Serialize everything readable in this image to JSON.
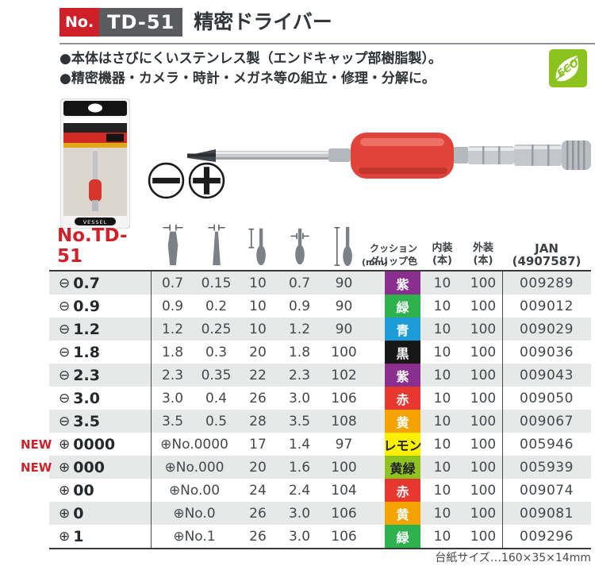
{
  "header": {
    "no_label": "No.",
    "model": "TD-51",
    "title": "精密ドライバー"
  },
  "features": [
    "●本体はさびにくいステンレス製（エンドキャップ部樹脂製）。",
    "●精密機器・カメラ・時計・メガネ等の組立・修理・分解に。"
  ],
  "eco_label": "ECO",
  "package_brand": "VESSEL",
  "symbols": {
    "minus": "⊖",
    "plus": "⊕"
  },
  "table": {
    "row_header_label": "No.TD-51",
    "unit_label": "(mm)",
    "new_label": "NEW",
    "columns": {
      "grip_line1": "クッション",
      "grip_line2": "グリップ色",
      "inner_line1": "内装",
      "inner_line2": "(本)",
      "outer_line1": "外装",
      "outer_line2": "(本)",
      "jan_line1": "JAN",
      "jan_line2": "(4907587)"
    },
    "rows": [
      {
        "new": false,
        "type": "minus",
        "size": "0.7",
        "values": [
          "0.7",
          "0.15",
          "10",
          "0.7",
          "90"
        ],
        "grip": "紫",
        "grip_hex": "#8a2e90",
        "grip_text_hex": "#ffffff",
        "inner": "10",
        "outer": "100",
        "jan": "009289"
      },
      {
        "new": false,
        "type": "minus",
        "size": "0.9",
        "values": [
          "0.9",
          "0.2",
          "10",
          "0.9",
          "90"
        ],
        "grip": "緑",
        "grip_hex": "#2eb24e",
        "grip_text_hex": "#ffffff",
        "inner": "10",
        "outer": "100",
        "jan": "009012"
      },
      {
        "new": false,
        "type": "minus",
        "size": "1.2",
        "values": [
          "1.2",
          "0.25",
          "10",
          "1.2",
          "90"
        ],
        "grip": "青",
        "grip_hex": "#1c9cd9",
        "grip_text_hex": "#ffffff",
        "inner": "10",
        "outer": "100",
        "jan": "009029"
      },
      {
        "new": false,
        "type": "minus",
        "size": "1.8",
        "values": [
          "1.8",
          "0.3",
          "20",
          "1.8",
          "100"
        ],
        "grip": "黒",
        "grip_hex": "#171717",
        "grip_text_hex": "#ffffff",
        "inner": "10",
        "outer": "100",
        "jan": "009036"
      },
      {
        "new": false,
        "type": "minus",
        "size": "2.3",
        "values": [
          "2.3",
          "0.35",
          "22",
          "2.3",
          "102"
        ],
        "grip": "紫",
        "grip_hex": "#8a2e90",
        "grip_text_hex": "#ffffff",
        "inner": "10",
        "outer": "100",
        "jan": "009043"
      },
      {
        "new": false,
        "type": "minus",
        "size": "3.0",
        "values": [
          "3.0",
          "0.4",
          "26",
          "3.0",
          "106"
        ],
        "grip": "赤",
        "grip_hex": "#e7372e",
        "grip_text_hex": "#ffffff",
        "inner": "10",
        "outer": "100",
        "jan": "009050"
      },
      {
        "new": false,
        "type": "minus",
        "size": "3.5",
        "values": [
          "3.5",
          "0.5",
          "28",
          "3.5",
          "108"
        ],
        "grip": "黄",
        "grip_hex": "#f4a300",
        "grip_text_hex": "#ffffff",
        "inner": "10",
        "outer": "100",
        "jan": "009067"
      },
      {
        "new": true,
        "type": "plus",
        "size": "0000",
        "merged": "No.0000",
        "values": [
          "17",
          "1.4",
          "97"
        ],
        "grip": "レモン",
        "grip_hex": "#fbf000",
        "grip_text_hex": "#222222",
        "inner": "10",
        "outer": "100",
        "jan": "005946"
      },
      {
        "new": true,
        "type": "plus",
        "size": "000",
        "merged": "No.000",
        "values": [
          "20",
          "1.6",
          "100"
        ],
        "grip": "黄緑",
        "grip_hex": "#8fc31f",
        "grip_text_hex": "#222222",
        "inner": "10",
        "outer": "100",
        "jan": "005939"
      },
      {
        "new": false,
        "type": "plus",
        "size": "00",
        "merged": "No.00",
        "values": [
          "24",
          "2.4",
          "104"
        ],
        "grip": "赤",
        "grip_hex": "#e7372e",
        "grip_text_hex": "#ffffff",
        "inner": "10",
        "outer": "100",
        "jan": "009074"
      },
      {
        "new": false,
        "type": "plus",
        "size": "0",
        "merged": "No.0",
        "values": [
          "26",
          "3.0",
          "106"
        ],
        "grip": "黄",
        "grip_hex": "#f4a300",
        "grip_text_hex": "#ffffff",
        "inner": "10",
        "outer": "100",
        "jan": "009081"
      },
      {
        "new": false,
        "type": "plus",
        "size": "1",
        "merged": "No.1",
        "values": [
          "26",
          "3.0",
          "106"
        ],
        "grip": "緑",
        "grip_hex": "#2eb24e",
        "grip_text_hex": "#ffffff",
        "inner": "10",
        "outer": "100",
        "jan": "009296"
      }
    ]
  },
  "footer": "台紙サイズ…160×35×14mm"
}
